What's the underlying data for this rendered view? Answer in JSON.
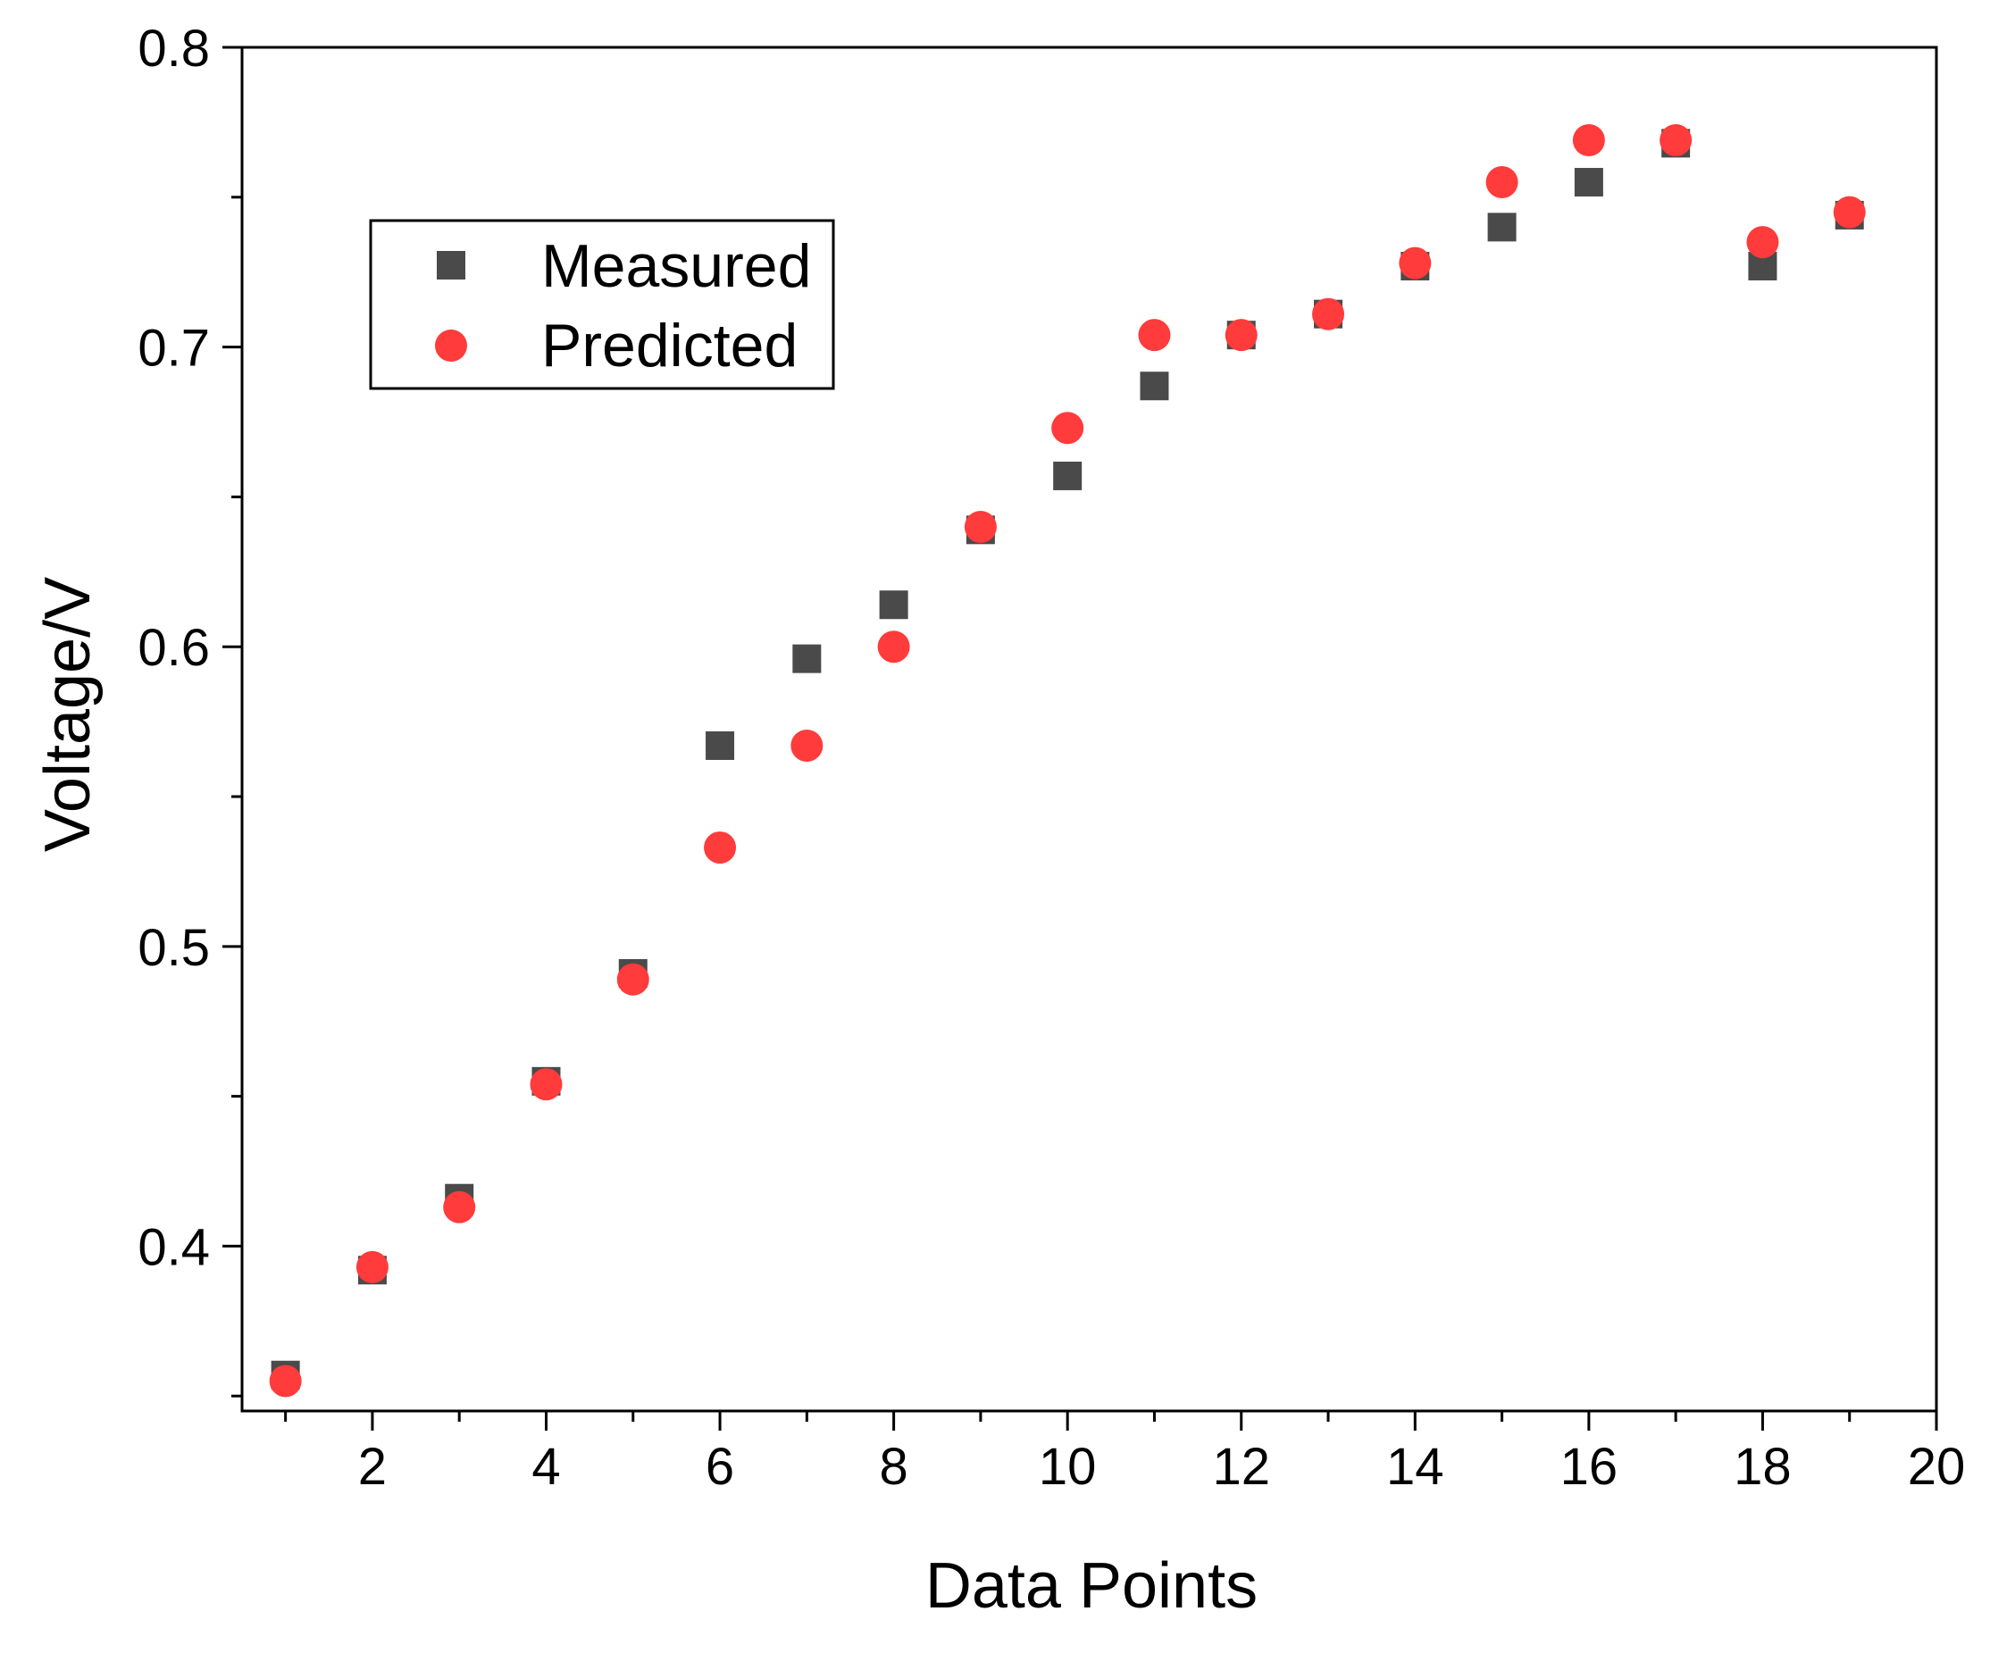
{
  "chart_data": {
    "type": "scatter",
    "title": "",
    "xlabel": "Data Points",
    "ylabel": "Voltage/V",
    "xlim": [
      0.5,
      20
    ],
    "ylim": [
      0.345,
      0.8
    ],
    "x_ticks": [
      2,
      4,
      6,
      8,
      10,
      12,
      14,
      16,
      18,
      20
    ],
    "x_tick_labels": [
      "2",
      "4",
      "6",
      "8",
      "10",
      "12",
      "14",
      "16",
      "18",
      "20"
    ],
    "x_minor_ticks": [
      1,
      3,
      5,
      7,
      9,
      11,
      13,
      15,
      17,
      19
    ],
    "y_ticks": [
      0.4,
      0.5,
      0.6,
      0.7,
      0.8
    ],
    "y_tick_labels": [
      "0.4",
      "0.5",
      "0.6",
      "0.7",
      "0.8"
    ],
    "y_minor_ticks": [
      0.35,
      0.45,
      0.55,
      0.65,
      0.75
    ],
    "grid": false,
    "legend_position": "top-left",
    "x": [
      1,
      2,
      3,
      4,
      5,
      6,
      7,
      8,
      9,
      10,
      11,
      12,
      13,
      14,
      15,
      16,
      17,
      18,
      19
    ],
    "series": [
      {
        "name": "Measured",
        "marker": "square",
        "color": "#4a4a4a",
        "values": [
          0.357,
          0.392,
          0.416,
          0.455,
          0.491,
          0.567,
          0.596,
          0.614,
          0.639,
          0.657,
          0.687,
          0.704,
          0.711,
          0.727,
          0.74,
          0.755,
          0.768,
          0.727,
          0.744
        ]
      },
      {
        "name": "Predicted",
        "marker": "circle",
        "color": "#ff3b3b",
        "values": [
          0.355,
          0.393,
          0.413,
          0.454,
          0.489,
          0.533,
          0.567,
          0.6,
          0.64,
          0.673,
          0.704,
          0.704,
          0.711,
          0.728,
          0.755,
          0.769,
          0.769,
          0.735,
          0.745
        ]
      }
    ]
  }
}
